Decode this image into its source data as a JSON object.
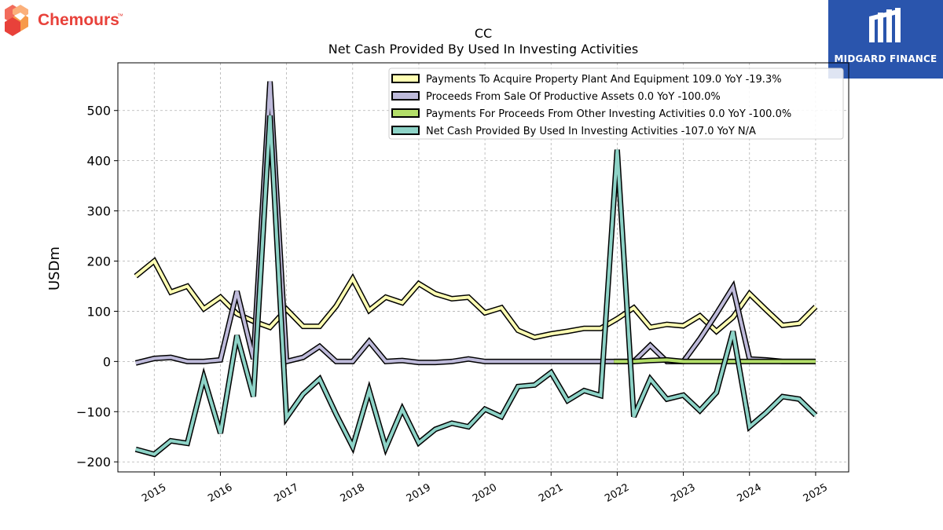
{
  "branding": {
    "left_logo_text": "Chemours",
    "left_logo_mark": "™",
    "right_logo_text": "MIDGARD FINANCE",
    "left_logo_color": "#e8413a",
    "right_logo_bg": "#2a55ad"
  },
  "chart_data": {
    "type": "line",
    "title": "CC",
    "subtitle": "Net Cash Provided By Used In Investing Activities",
    "ylabel": "USDm",
    "xlabel": "",
    "ylim": [
      -220,
      595
    ],
    "xlim": [
      2014.45,
      2025.5
    ],
    "yticks": [
      -200,
      -100,
      0,
      100,
      200,
      300,
      400,
      500
    ],
    "ytick_labels": [
      "−200",
      "−100",
      "0",
      "100",
      "200",
      "300",
      "400",
      "500"
    ],
    "xticks": [
      2015,
      2016,
      2017,
      2018,
      2019,
      2020,
      2021,
      2022,
      2023,
      2024,
      2025
    ],
    "xtick_labels": [
      "2015",
      "2016",
      "2017",
      "2018",
      "2019",
      "2020",
      "2021",
      "2022",
      "2023",
      "2024",
      "2025"
    ],
    "grid": true,
    "legend_position": "top-right",
    "series": [
      {
        "name": "Payments To Acquire Property Plant And Equipment",
        "legend_label": "Payments To Acquire Property Plant And Equipment  109.0 YoY -19.3%",
        "color": "#ffffb3",
        "points": [
          [
            2014.72,
            170
          ],
          [
            2015.0,
            200
          ],
          [
            2015.25,
            138
          ],
          [
            2015.5,
            150
          ],
          [
            2015.75,
            105
          ],
          [
            2016.0,
            128
          ],
          [
            2016.25,
            95
          ],
          [
            2016.5,
            80
          ],
          [
            2016.75,
            68
          ],
          [
            2017.0,
            104
          ],
          [
            2017.25,
            70
          ],
          [
            2017.5,
            70
          ],
          [
            2017.75,
            110
          ],
          [
            2018.0,
            165
          ],
          [
            2018.25,
            102
          ],
          [
            2018.5,
            128
          ],
          [
            2018.75,
            117
          ],
          [
            2019.0,
            155
          ],
          [
            2019.25,
            135
          ],
          [
            2019.5,
            125
          ],
          [
            2019.75,
            128
          ],
          [
            2020.0,
            97
          ],
          [
            2020.25,
            107
          ],
          [
            2020.5,
            62
          ],
          [
            2020.75,
            48
          ],
          [
            2021.0,
            55
          ],
          [
            2021.25,
            60
          ],
          [
            2021.5,
            66
          ],
          [
            2021.75,
            66
          ],
          [
            2022.0,
            85
          ],
          [
            2022.25,
            107
          ],
          [
            2022.5,
            68
          ],
          [
            2022.75,
            74
          ],
          [
            2023.0,
            71
          ],
          [
            2023.25,
            91
          ],
          [
            2023.5,
            60
          ],
          [
            2023.75,
            88
          ],
          [
            2024.0,
            135
          ],
          [
            2024.25,
            103
          ],
          [
            2024.5,
            72
          ],
          [
            2024.75,
            76
          ],
          [
            2025.0,
            109
          ]
        ]
      },
      {
        "name": "Proceeds From Sale Of Productive Assets",
        "legend_label": "Proceeds From Sale Of Productive Assets  0.0 YoY -100.0%",
        "color": "#bebada",
        "points": [
          [
            2014.72,
            -3
          ],
          [
            2015.0,
            6
          ],
          [
            2015.25,
            8
          ],
          [
            2015.5,
            0
          ],
          [
            2015.75,
            0
          ],
          [
            2016.0,
            3
          ],
          [
            2016.25,
            140
          ],
          [
            2016.5,
            5
          ],
          [
            2016.75,
            558
          ],
          [
            2017.0,
            0
          ],
          [
            2017.25,
            8
          ],
          [
            2017.5,
            30
          ],
          [
            2017.75,
            0
          ],
          [
            2018.0,
            0
          ],
          [
            2018.25,
            40
          ],
          [
            2018.5,
            0
          ],
          [
            2018.75,
            2
          ],
          [
            2019.0,
            -2
          ],
          [
            2019.25,
            -2
          ],
          [
            2019.5,
            0
          ],
          [
            2019.75,
            5
          ],
          [
            2020.0,
            0
          ],
          [
            2020.25,
            0
          ],
          [
            2020.5,
            0
          ],
          [
            2020.75,
            0
          ],
          [
            2021.0,
            0
          ],
          [
            2021.25,
            0
          ],
          [
            2021.5,
            0
          ],
          [
            2021.75,
            0
          ],
          [
            2022.0,
            0
          ],
          [
            2022.25,
            0
          ],
          [
            2022.5,
            32
          ],
          [
            2022.75,
            0
          ],
          [
            2023.0,
            0
          ],
          [
            2023.25,
            45
          ],
          [
            2023.5,
            95
          ],
          [
            2023.75,
            148
          ],
          [
            2024.0,
            5
          ],
          [
            2024.25,
            3
          ],
          [
            2024.5,
            0
          ],
          [
            2024.75,
            0
          ],
          [
            2025.0,
            0
          ]
        ]
      },
      {
        "name": "Payments For Proceeds From Other Investing Activities",
        "legend_label": "Payments For Proceeds From Other Investing Activities  0.0 YoY -100.0%",
        "color": "#b3de69",
        "points": [
          [
            2021.95,
            0
          ],
          [
            2022.25,
            0
          ],
          [
            2022.5,
            2
          ],
          [
            2022.75,
            3
          ],
          [
            2023.0,
            0
          ],
          [
            2023.25,
            0
          ],
          [
            2023.5,
            0
          ],
          [
            2023.75,
            0
          ],
          [
            2024.0,
            0
          ],
          [
            2024.25,
            0
          ],
          [
            2024.5,
            0
          ],
          [
            2024.75,
            0
          ],
          [
            2025.0,
            0
          ]
        ]
      },
      {
        "name": "Net Cash Provided By Used In Investing Activities",
        "legend_label": "Net Cash Provided By Used In Investing Activities  -107.0 YoY N/A",
        "color": "#8dd3c7",
        "points": [
          [
            2014.72,
            -175
          ],
          [
            2015.0,
            -185
          ],
          [
            2015.25,
            -158
          ],
          [
            2015.5,
            -163
          ],
          [
            2015.75,
            -32
          ],
          [
            2016.0,
            -143
          ],
          [
            2016.25,
            52
          ],
          [
            2016.5,
            -70
          ],
          [
            2016.75,
            490
          ],
          [
            2017.0,
            -112
          ],
          [
            2017.25,
            -65
          ],
          [
            2017.5,
            -35
          ],
          [
            2017.75,
            -105
          ],
          [
            2018.0,
            -170
          ],
          [
            2018.25,
            -58
          ],
          [
            2018.5,
            -172
          ],
          [
            2018.75,
            -95
          ],
          [
            2019.0,
            -162
          ],
          [
            2019.25,
            -135
          ],
          [
            2019.5,
            -123
          ],
          [
            2019.75,
            -130
          ],
          [
            2020.0,
            -95
          ],
          [
            2020.25,
            -110
          ],
          [
            2020.5,
            -50
          ],
          [
            2020.75,
            -47
          ],
          [
            2021.0,
            -22
          ],
          [
            2021.25,
            -78
          ],
          [
            2021.5,
            -58
          ],
          [
            2021.75,
            -68
          ],
          [
            2022.0,
            422
          ],
          [
            2022.25,
            -110
          ],
          [
            2022.5,
            -35
          ],
          [
            2022.75,
            -75
          ],
          [
            2023.0,
            -67
          ],
          [
            2023.25,
            -98
          ],
          [
            2023.5,
            -62
          ],
          [
            2023.75,
            60
          ],
          [
            2024.0,
            -130
          ],
          [
            2024.25,
            -102
          ],
          [
            2024.5,
            -70
          ],
          [
            2024.75,
            -75
          ],
          [
            2025.0,
            -107
          ]
        ]
      }
    ]
  }
}
